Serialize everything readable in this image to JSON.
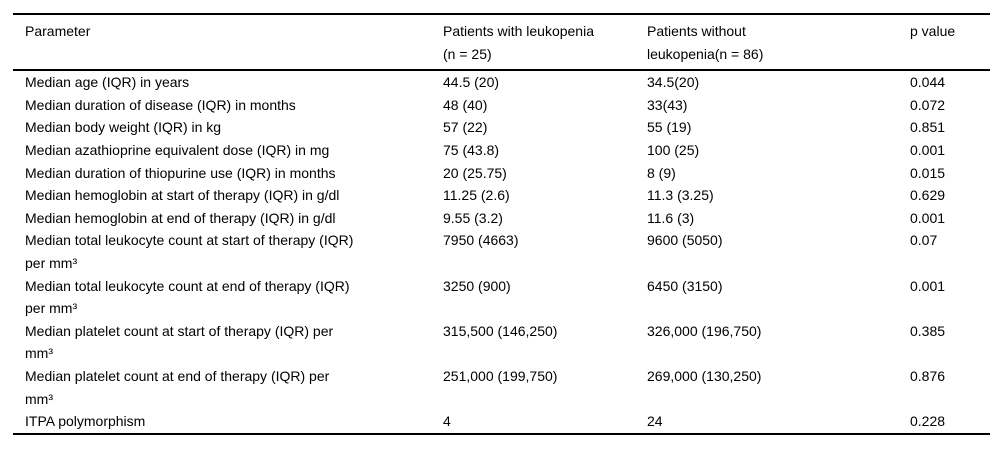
{
  "colors": {
    "background": "#ffffff",
    "text": "#000000",
    "rule": "#000000"
  },
  "table": {
    "columns": [
      {
        "label_lines": [
          "Parameter"
        ]
      },
      {
        "label_lines": [
          "Patients with leukopenia",
          "(n = 25)"
        ]
      },
      {
        "label_lines": [
          "Patients without",
          "leukopenia(n = 86)"
        ]
      },
      {
        "label_lines": [
          "p value"
        ]
      }
    ],
    "rows": [
      {
        "parameter_lines": [
          "Median age (IQR) in years"
        ],
        "with_leukopenia": "44.5 (20)",
        "without_leukopenia": "34.5(20)",
        "p_value": "0.044"
      },
      {
        "parameter_lines": [
          "Median duration of disease (IQR) in months"
        ],
        "with_leukopenia": "48 (40)",
        "without_leukopenia": "33(43)",
        "p_value": "0.072"
      },
      {
        "parameter_lines": [
          "Median body weight (IQR) in kg"
        ],
        "with_leukopenia": "57 (22)",
        "without_leukopenia": "55 (19)",
        "p_value": "0.851"
      },
      {
        "parameter_lines": [
          "Median azathioprine equivalent dose (IQR) in mg"
        ],
        "with_leukopenia": "75 (43.8)",
        "without_leukopenia": "100 (25)",
        "p_value": "0.001"
      },
      {
        "parameter_lines": [
          "Median duration of thiopurine use (IQR) in months"
        ],
        "with_leukopenia": "20 (25.75)",
        "without_leukopenia": "8 (9)",
        "p_value": "0.015"
      },
      {
        "parameter_lines": [
          "Median hemoglobin at start of therapy (IQR) in g/dl"
        ],
        "with_leukopenia": "11.25 (2.6)",
        "without_leukopenia": "11.3 (3.25)",
        "p_value": "0.629"
      },
      {
        "parameter_lines": [
          "Median hemoglobin at end of therapy (IQR) in g/dl"
        ],
        "with_leukopenia": "9.55 (3.2)",
        "without_leukopenia": "11.6 (3)",
        "p_value": "0.001"
      },
      {
        "parameter_lines": [
          "Median total leukocyte count at start of therapy (IQR)",
          "per mm³"
        ],
        "with_leukopenia": "7950 (4663)",
        "without_leukopenia": "9600 (5050)",
        "p_value": "0.07"
      },
      {
        "parameter_lines": [
          "Median total leukocyte count at end of therapy (IQR)",
          "per mm³"
        ],
        "with_leukopenia": "3250 (900)",
        "without_leukopenia": "6450 (3150)",
        "p_value": "0.001"
      },
      {
        "parameter_lines": [
          "Median platelet count at start of therapy (IQR) per",
          "mm³"
        ],
        "with_leukopenia": "315,500 (146,250)",
        "without_leukopenia": "326,000 (196,750)",
        "p_value": "0.385"
      },
      {
        "parameter_lines": [
          "Median platelet count at end of therapy (IQR) per",
          "mm³"
        ],
        "with_leukopenia": "251,000 (199,750)",
        "without_leukopenia": "269,000 (130,250)",
        "p_value": "0.876"
      },
      {
        "parameter_lines": [
          "ITPA polymorphism"
        ],
        "with_leukopenia": "4",
        "without_leukopenia": "24",
        "p_value": "0.228"
      }
    ]
  }
}
